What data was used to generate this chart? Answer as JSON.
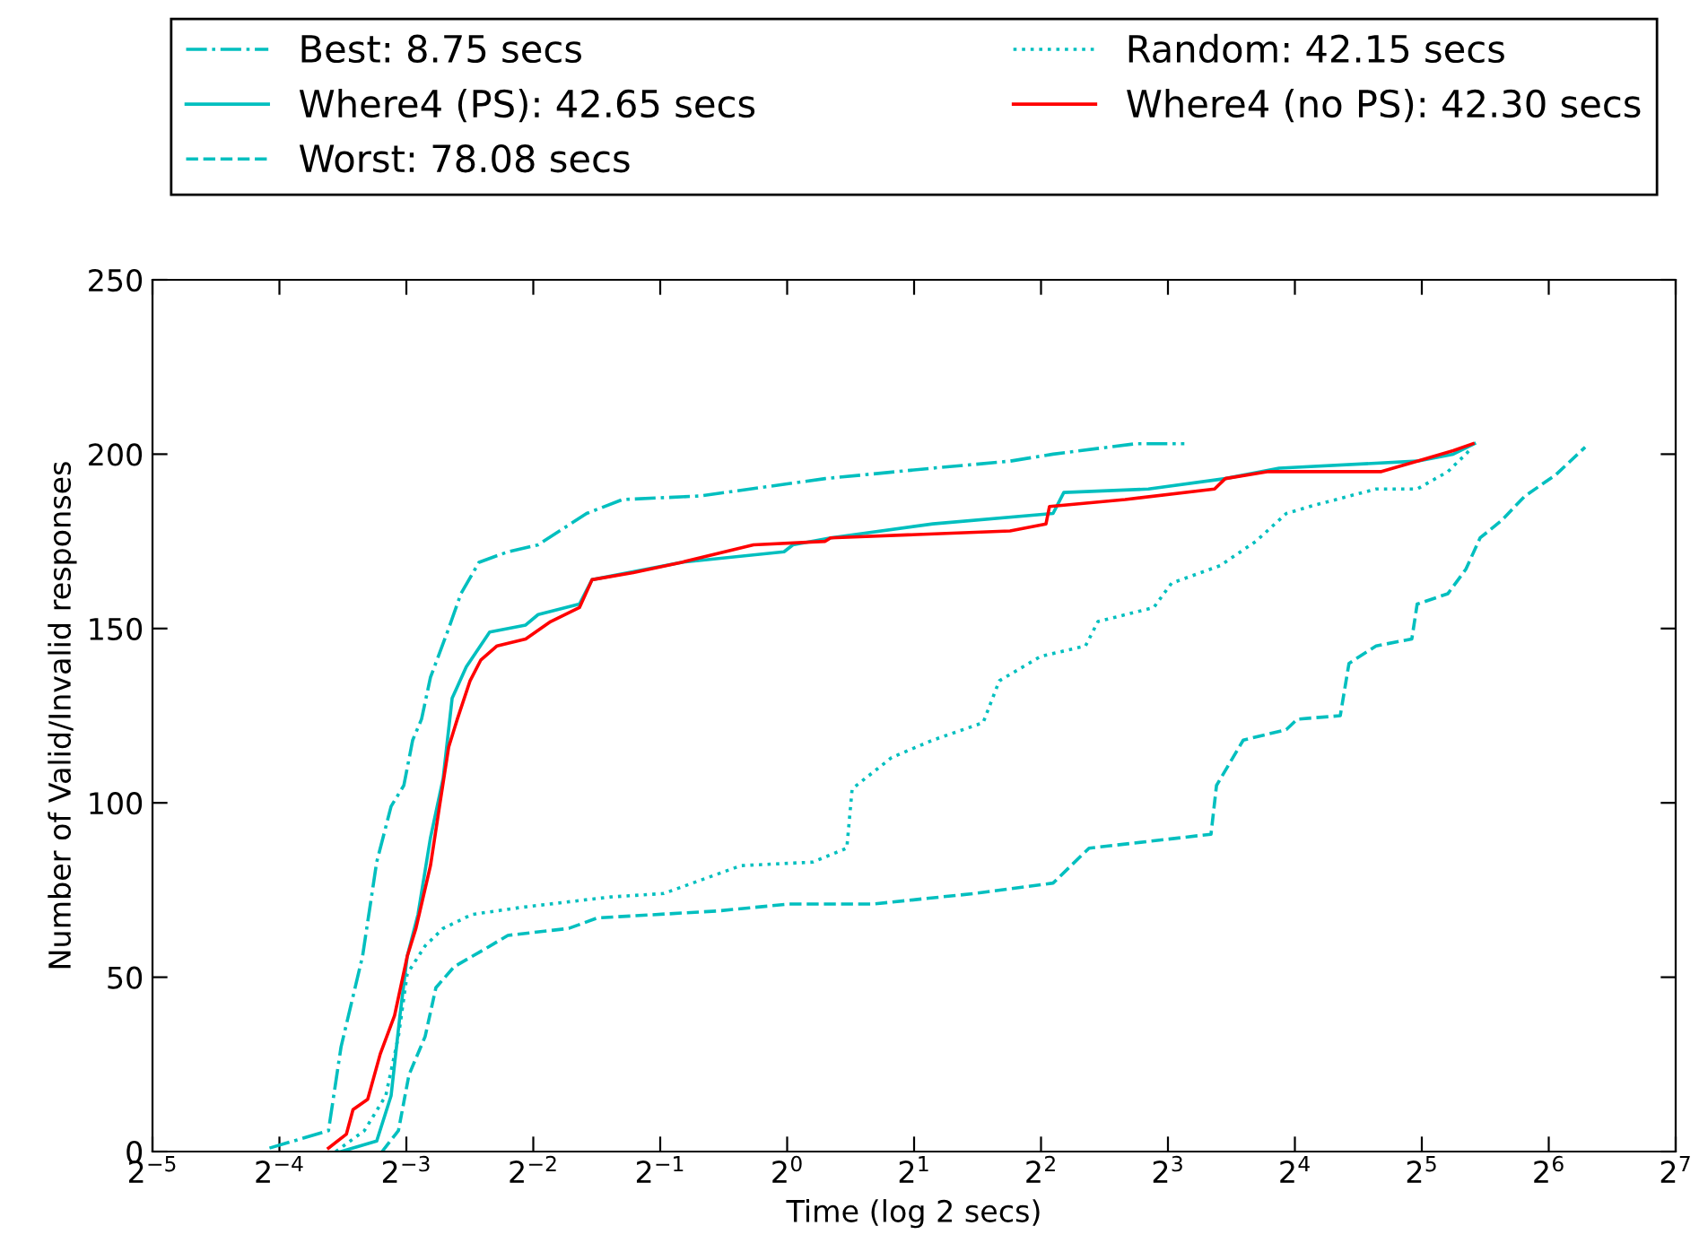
{
  "chart_data": {
    "type": "line",
    "xlabel": "Time (log 2 secs)",
    "ylabel": "Number of Valid/Invalid responses",
    "log": "x",
    "grid": false,
    "legend": "top",
    "marker": "none",
    "xlim": [
      0.03125,
      128
    ],
    "xticks": [
      {
        "value": 0.03125,
        "label": "2$^{−5}$"
      },
      {
        "value": 0.0625,
        "label": "2$^{−4}$"
      },
      {
        "value": 0.125,
        "label": "2$^{−3}$"
      },
      {
        "value": 0.25,
        "label": "2$^{−2}$"
      },
      {
        "value": 0.5,
        "label": "2$^{−1}$"
      },
      {
        "value": 1,
        "label": "2$^{0}$"
      },
      {
        "value": 2,
        "label": "2$^{1}$"
      },
      {
        "value": 4,
        "label": "2$^{2}$"
      },
      {
        "value": 8,
        "label": "2$^{3}$"
      },
      {
        "value": 16,
        "label": "2$^{4}$"
      },
      {
        "value": 32,
        "label": "2$^{5}$"
      },
      {
        "value": 64,
        "label": "2$^{6}$"
      },
      {
        "value": 128,
        "label": "2$^{7}$"
      }
    ],
    "ylim": [
      0,
      250
    ],
    "yticks": [
      0,
      50,
      100,
      150,
      200,
      250
    ],
    "series": [
      {
        "name": "Best: 8.75 secs",
        "color": "#00bfbf",
        "line_style": "dashdot",
        "x": [
          0.0592,
          0.0817,
          0.0875,
          0.0984,
          0.1063,
          0.115,
          0.1233,
          0.1294,
          0.1358,
          0.1426,
          0.1575,
          0.1684,
          0.1859,
          0.2176,
          0.2567,
          0.3345,
          0.4072,
          0.6203,
          1.231,
          2.216,
          3.378,
          4.272,
          6.7,
          8.75
        ],
        "values": [
          1,
          6,
          30,
          56,
          83,
          99,
          105,
          118,
          124,
          136,
          150,
          160,
          169,
          172,
          174,
          183,
          187,
          188,
          193,
          196,
          198,
          200,
          203,
          203
        ]
      },
      {
        "name": "Where4 (PS): 42.65 secs",
        "color": "#00bfbf",
        "line_style": "solid",
        "x": [
          0.0875,
          0.1063,
          0.115,
          0.1207,
          0.1256,
          0.1332,
          0.1426,
          0.1528,
          0.1605,
          0.1734,
          0.197,
          0.2398,
          0.2567,
          0.3217,
          0.3446,
          0.5626,
          0.983,
          1.032,
          1.268,
          2.216,
          4.272,
          4.53,
          7.19,
          10.94,
          14.68,
          31.2,
          37.98,
          42.65
        ],
        "values": [
          0,
          3,
          16,
          39,
          56,
          68,
          90,
          107,
          130,
          139,
          149,
          151,
          154,
          157,
          164,
          169,
          172,
          174,
          176,
          180,
          183,
          189,
          190,
          193,
          196,
          198,
          200,
          203
        ]
      },
      {
        "name": "Worst: 78.08 secs",
        "color": "#00bfbf",
        "line_style": "dashed",
        "x": [
          0.1095,
          0.1197,
          0.1268,
          0.1385,
          0.1469,
          0.1622,
          0.1915,
          0.2176,
          0.3035,
          0.3548,
          0.684,
          1.012,
          1.604,
          2.776,
          4.272,
          5.2,
          10.12,
          10.43,
          12.07,
          15.27,
          16.21,
          20.5,
          21.5,
          24.93,
          30.3,
          31.2,
          36.9,
          40.7,
          44.0,
          49.5,
          56.2,
          66.4,
          78.08
        ],
        "values": [
          0,
          6,
          22,
          33,
          47,
          53,
          58,
          62,
          64,
          67,
          69,
          71,
          71,
          74,
          77,
          87,
          91,
          105,
          118,
          121,
          124,
          125,
          140,
          145,
          147,
          157,
          160,
          167,
          176,
          181,
          188,
          194,
          202
        ]
      },
      {
        "name": "Random: 42.15 secs",
        "color": "#00bfbf",
        "line_style": "dotted",
        "x": [
          0.085,
          0.0994,
          0.1117,
          0.1197,
          0.1256,
          0.1385,
          0.1528,
          0.179,
          0.2331,
          0.38,
          0.5098,
          0.777,
          1.149,
          1.385,
          1.426,
          1.769,
          2.216,
          2.916,
          3.185,
          3.99,
          5.1,
          5.46,
          7.4,
          8.16,
          10.63,
          12.93,
          15.27,
          17.35,
          24.93,
          31.2,
          36.9,
          40.7,
          42.15
        ],
        "values": [
          0,
          6,
          16,
          33,
          51,
          59,
          64,
          68,
          70,
          73,
          74,
          82,
          83,
          87,
          104,
          113,
          118,
          123,
          135,
          142,
          145,
          152,
          156,
          163,
          168,
          175,
          183,
          185,
          190,
          190,
          195,
          200,
          202
        ]
      },
      {
        "name": "Where4 (no PS): 42.30 secs",
        "color": "#ff0000",
        "line_style": "solid",
        "x": [
          0.0817,
          0.0901,
          0.0934,
          0.1012,
          0.1084,
          0.1172,
          0.1256,
          0.1317,
          0.1426,
          0.1498,
          0.1575,
          0.1651,
          0.177,
          0.1878,
          0.2051,
          0.2398,
          0.2749,
          0.3217,
          0.3446,
          0.4315,
          0.5626,
          0.832,
          1.231,
          1.268,
          3.378,
          4.11,
          4.19,
          6.33,
          10.32,
          10.94,
          13.85,
          25.67,
          31.2,
          37.98,
          42.3
        ],
        "values": [
          1,
          5,
          12,
          15,
          28,
          39,
          56,
          64,
          82,
          99,
          116,
          124,
          135,
          141,
          145,
          147,
          152,
          156,
          164,
          166,
          169,
          174,
          175,
          176,
          178,
          180,
          185,
          187,
          190,
          193,
          195,
          195,
          198,
          201,
          203
        ]
      }
    ]
  }
}
